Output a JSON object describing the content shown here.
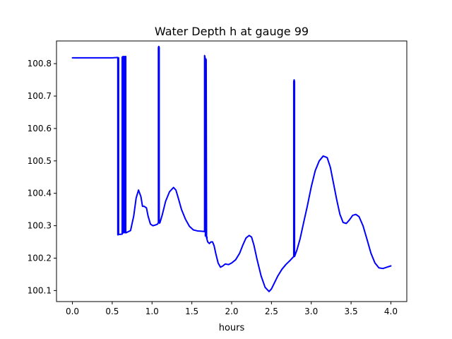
{
  "chart_data": {
    "type": "line",
    "title": "Water Depth h at gauge 99",
    "xlabel": "hours",
    "ylabel": "",
    "xlim": [
      -0.2,
      4.2
    ],
    "ylim": [
      100.066,
      100.87
    ],
    "xticks": [
      0.0,
      0.5,
      1.0,
      1.5,
      2.0,
      2.5,
      3.0,
      3.5,
      4.0
    ],
    "xtick_labels": [
      "0.0",
      "0.5",
      "1.0",
      "1.5",
      "2.0",
      "2.5",
      "3.0",
      "3.5",
      "4.0"
    ],
    "yticks": [
      100.1,
      100.2,
      100.3,
      100.4,
      100.5,
      100.6,
      100.7,
      100.8
    ],
    "ytick_labels": [
      "100.1",
      "100.2",
      "100.3",
      "100.4",
      "100.5",
      "100.6",
      "100.7",
      "100.8"
    ],
    "grid": false,
    "series": [
      {
        "color": "#0000ff",
        "x": [
          0.0,
          0.5,
          0.57,
          0.57,
          0.575,
          0.58,
          0.58,
          0.625,
          0.625,
          0.635,
          0.64,
          0.64,
          0.655,
          0.655,
          0.66,
          0.67,
          0.67,
          0.73,
          0.77,
          0.8,
          0.83,
          0.86,
          0.88,
          0.9,
          0.93,
          0.95,
          0.98,
          1.01,
          1.04,
          1.07,
          1.08,
          1.08,
          1.085,
          1.09,
          1.09,
          1.095,
          1.1,
          1.13,
          1.17,
          1.22,
          1.27,
          1.3,
          1.33,
          1.37,
          1.42,
          1.47,
          1.52,
          1.57,
          1.62,
          1.66,
          1.66,
          1.665,
          1.67,
          1.675,
          1.675,
          1.68,
          1.685,
          1.69,
          1.69,
          1.7,
          1.72,
          1.74,
          1.76,
          1.78,
          1.8,
          1.83,
          1.86,
          1.89,
          1.92,
          1.96,
          2.0,
          2.05,
          2.1,
          2.14,
          2.18,
          2.22,
          2.25,
          2.28,
          2.32,
          2.37,
          2.42,
          2.47,
          2.5,
          2.53,
          2.58,
          2.63,
          2.68,
          2.73,
          2.78,
          2.78,
          2.785,
          2.79,
          2.79,
          2.82,
          2.86,
          2.9,
          2.95,
          3.0,
          3.05,
          3.1,
          3.15,
          3.2,
          3.24,
          3.28,
          3.32,
          3.36,
          3.4,
          3.44,
          3.48,
          3.52,
          3.56,
          3.6,
          3.65,
          3.7,
          3.75,
          3.8,
          3.85,
          3.9,
          3.95,
          4.0
        ],
        "y": [
          100.818,
          100.818,
          100.819,
          100.272,
          100.272,
          100.818,
          100.273,
          100.274,
          100.82,
          100.822,
          100.822,
          100.278,
          100.279,
          100.822,
          100.822,
          100.822,
          100.278,
          100.285,
          100.33,
          100.385,
          100.41,
          100.39,
          100.36,
          100.36,
          100.355,
          100.33,
          100.305,
          100.3,
          100.302,
          100.305,
          100.31,
          100.85,
          100.853,
          100.85,
          100.31,
          100.308,
          100.31,
          100.335,
          100.375,
          100.405,
          100.418,
          100.41,
          100.385,
          100.35,
          100.32,
          100.298,
          100.287,
          100.284,
          100.283,
          100.282,
          100.825,
          100.82,
          100.268,
          100.27,
          100.815,
          100.812,
          100.262,
          100.265,
          100.258,
          100.25,
          100.245,
          100.25,
          100.25,
          100.238,
          100.215,
          100.185,
          100.172,
          100.176,
          100.182,
          100.18,
          100.185,
          100.195,
          100.215,
          100.24,
          100.262,
          100.27,
          100.265,
          100.24,
          100.195,
          100.145,
          100.11,
          100.097,
          100.105,
          100.12,
          100.145,
          100.165,
          100.18,
          100.192,
          100.205,
          100.745,
          100.75,
          100.745,
          100.205,
          100.225,
          100.26,
          100.305,
          100.36,
          100.42,
          100.47,
          100.5,
          100.515,
          100.51,
          100.48,
          100.43,
          100.38,
          100.335,
          100.31,
          100.307,
          100.318,
          100.332,
          100.335,
          100.328,
          100.3,
          100.258,
          100.215,
          100.185,
          100.17,
          100.168,
          100.172,
          100.176
        ]
      }
    ]
  }
}
